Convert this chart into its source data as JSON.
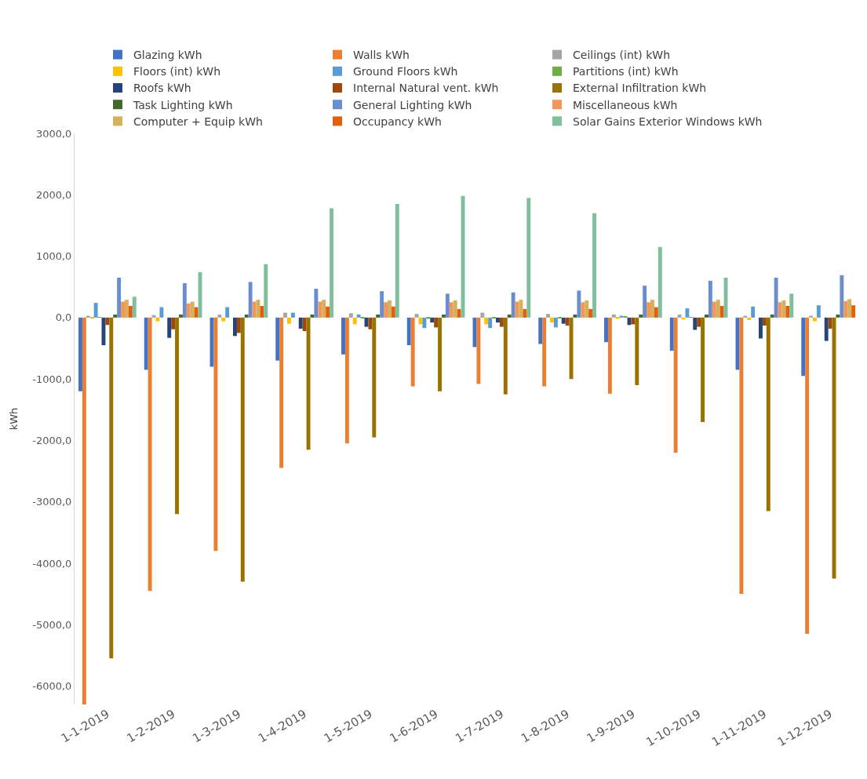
{
  "chart_data": {
    "type": "bar",
    "ylabel": "kWh",
    "categories": [
      "1-1-2019",
      "1-2-2019",
      "1-3-2019",
      "1-4-2019",
      "1-5-2019",
      "1-6-2019",
      "1-7-2019",
      "1-8-2019",
      "1-9-2019",
      "1-10-2019",
      "1-11-2019",
      "1-12-2019"
    ],
    "series": [
      {
        "name": "Glazing kWh",
        "color": "#4472c4",
        "values": [
          -1200,
          -850,
          -800,
          -700,
          -600,
          -450,
          -480,
          -430,
          -400,
          -540,
          -850,
          -950
        ]
      },
      {
        "name": "Walls kWh",
        "color": "#ed7d31",
        "values": [
          -6300,
          -4450,
          -3800,
          -2450,
          -2050,
          -1120,
          -1080,
          -1120,
          -1240,
          -2200,
          -4500,
          -5150
        ]
      },
      {
        "name": "Ceilings (int) kWh",
        "color": "#a5a5a5",
        "values": [
          30,
          40,
          50,
          80,
          70,
          60,
          80,
          60,
          50,
          50,
          30,
          30
        ]
      },
      {
        "name": "Floors (int) kWh",
        "color": "#ffc000",
        "values": [
          -10,
          -60,
          -60,
          -100,
          -110,
          -110,
          -110,
          -80,
          -20,
          -30,
          -40,
          -60
        ]
      },
      {
        "name": "Ground Floors kWh",
        "color": "#5b9bd5",
        "values": [
          240,
          170,
          170,
          80,
          50,
          -170,
          -170,
          -160,
          30,
          150,
          180,
          200
        ]
      },
      {
        "name": "Partitions (int) kWh",
        "color": "#70ad47",
        "values": [
          10,
          0,
          0,
          0,
          -10,
          -20,
          -10,
          -10,
          20,
          10,
          0,
          0
        ]
      },
      {
        "name": "Roofs kWh",
        "color": "#264478",
        "values": [
          -450,
          -330,
          -300,
          -180,
          -150,
          -80,
          -80,
          -100,
          -120,
          -200,
          -340,
          -380
        ]
      },
      {
        "name": "Internal Natural vent. kWh",
        "color": "#9e480e",
        "values": [
          -120,
          -190,
          -250,
          -220,
          -190,
          -160,
          -150,
          -130,
          -110,
          -150,
          -130,
          -180
        ]
      },
      {
        "name": "External Infiltration kWh",
        "color": "#997300",
        "values": [
          -5550,
          -3200,
          -4300,
          -2150,
          -1950,
          -1200,
          -1250,
          -1000,
          -1100,
          -1700,
          -3150,
          -4250
        ]
      },
      {
        "name": "Task Lighting kWh",
        "color": "#43682b",
        "values": [
          50,
          50,
          50,
          50,
          50,
          50,
          50,
          50,
          50,
          50,
          50,
          50
        ]
      },
      {
        "name": "General Lighting kWh",
        "color": "#698ed0",
        "values": [
          650,
          560,
          580,
          470,
          430,
          390,
          410,
          440,
          520,
          600,
          650,
          690
        ]
      },
      {
        "name": "Miscellaneous kWh",
        "color": "#f1975a",
        "values": [
          260,
          230,
          260,
          260,
          250,
          250,
          260,
          250,
          250,
          260,
          250,
          270
        ]
      },
      {
        "name": "Computer + Equip kWh",
        "color": "#d4b15a",
        "values": [
          290,
          260,
          290,
          290,
          280,
          280,
          290,
          280,
          290,
          290,
          280,
          300
        ]
      },
      {
        "name": "Occupancy kWh",
        "color": "#e0600f",
        "values": [
          190,
          170,
          190,
          180,
          180,
          140,
          140,
          140,
          170,
          190,
          190,
          200
        ]
      },
      {
        "name": "Solar Gains Exterior Windows kWh",
        "color": "#7fbf9b",
        "values": [
          340,
          740,
          870,
          1780,
          1850,
          1980,
          1950,
          1700,
          1150,
          650,
          390,
          null
        ]
      }
    ],
    "ylim": [
      -6300,
      3000
    ],
    "yticks": [
      {
        "value": -6000,
        "label": "-6000,0"
      },
      {
        "value": -5000,
        "label": "-5000,0"
      },
      {
        "value": -4000,
        "label": "-4000,0"
      },
      {
        "value": -3000,
        "label": "-3000,0"
      },
      {
        "value": -2000,
        "label": "-2000,0"
      },
      {
        "value": -1000,
        "label": "-1000,0"
      },
      {
        "value": 0,
        "label": "0,0"
      },
      {
        "value": 1000,
        "label": "1000,0"
      },
      {
        "value": 2000,
        "label": "2000,0"
      },
      {
        "value": 3000,
        "label": "3000,0"
      }
    ],
    "grid": false,
    "legend": "top"
  }
}
